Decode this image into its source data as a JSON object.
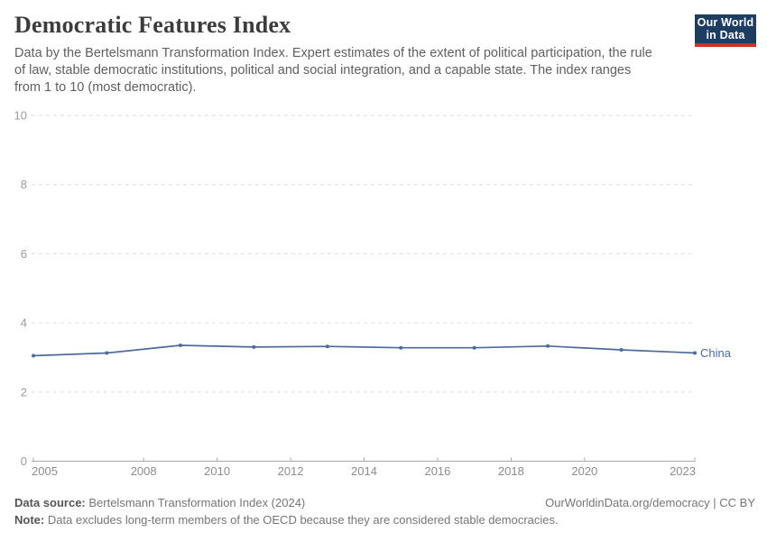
{
  "header": {
    "title": "Democratic Features Index",
    "subtitle_lines": [
      "Data by the Bertelsmann Transformation Index. Expert estimates of the extent of political participation, the rule",
      "of law, stable democratic institutions, political and social integration, and a capable state. The index ranges",
      "from 1 to 10 (most democratic)."
    ],
    "logo": {
      "line1": "Our World",
      "line2": "in Data",
      "bg_color": "#1d3d63",
      "bar_color": "#c5342b"
    }
  },
  "chart_data": {
    "type": "line",
    "title": "Democratic Features Index",
    "xlabel": "",
    "ylabel": "",
    "x": [
      2005,
      2007,
      2009,
      2011,
      2013,
      2015,
      2017,
      2019,
      2021,
      2023
    ],
    "series": [
      {
        "name": "China",
        "color": "#4c6a9c",
        "values": [
          3.05,
          3.13,
          3.35,
          3.3,
          3.32,
          3.28,
          3.28,
          3.33,
          3.22,
          3.13
        ]
      }
    ],
    "x_ticks": [
      2005,
      2008,
      2010,
      2012,
      2014,
      2016,
      2018,
      2020,
      2023
    ],
    "y_ticks": [
      0,
      2,
      4,
      6,
      8,
      10
    ],
    "xlim": [
      2005,
      2023
    ],
    "ylim": [
      0,
      10
    ],
    "grid": "horizontal-dashed",
    "legend_position": "end-of-line-label"
  },
  "colors": {
    "grid": "#dddddd",
    "axis": "#a8a8a8",
    "y_tick_label": "#9b9b9b",
    "x_tick_label": "#8c8c8c"
  },
  "footer": {
    "source_label": "Data source:",
    "source_text": " Bertelsmann Transformation Index (2024)",
    "attribution": "OurWorldinData.org/democracy | CC BY",
    "note_label": "Note:",
    "note_text": " Data excludes long-term members of the OECD because they are considered stable democracies."
  }
}
